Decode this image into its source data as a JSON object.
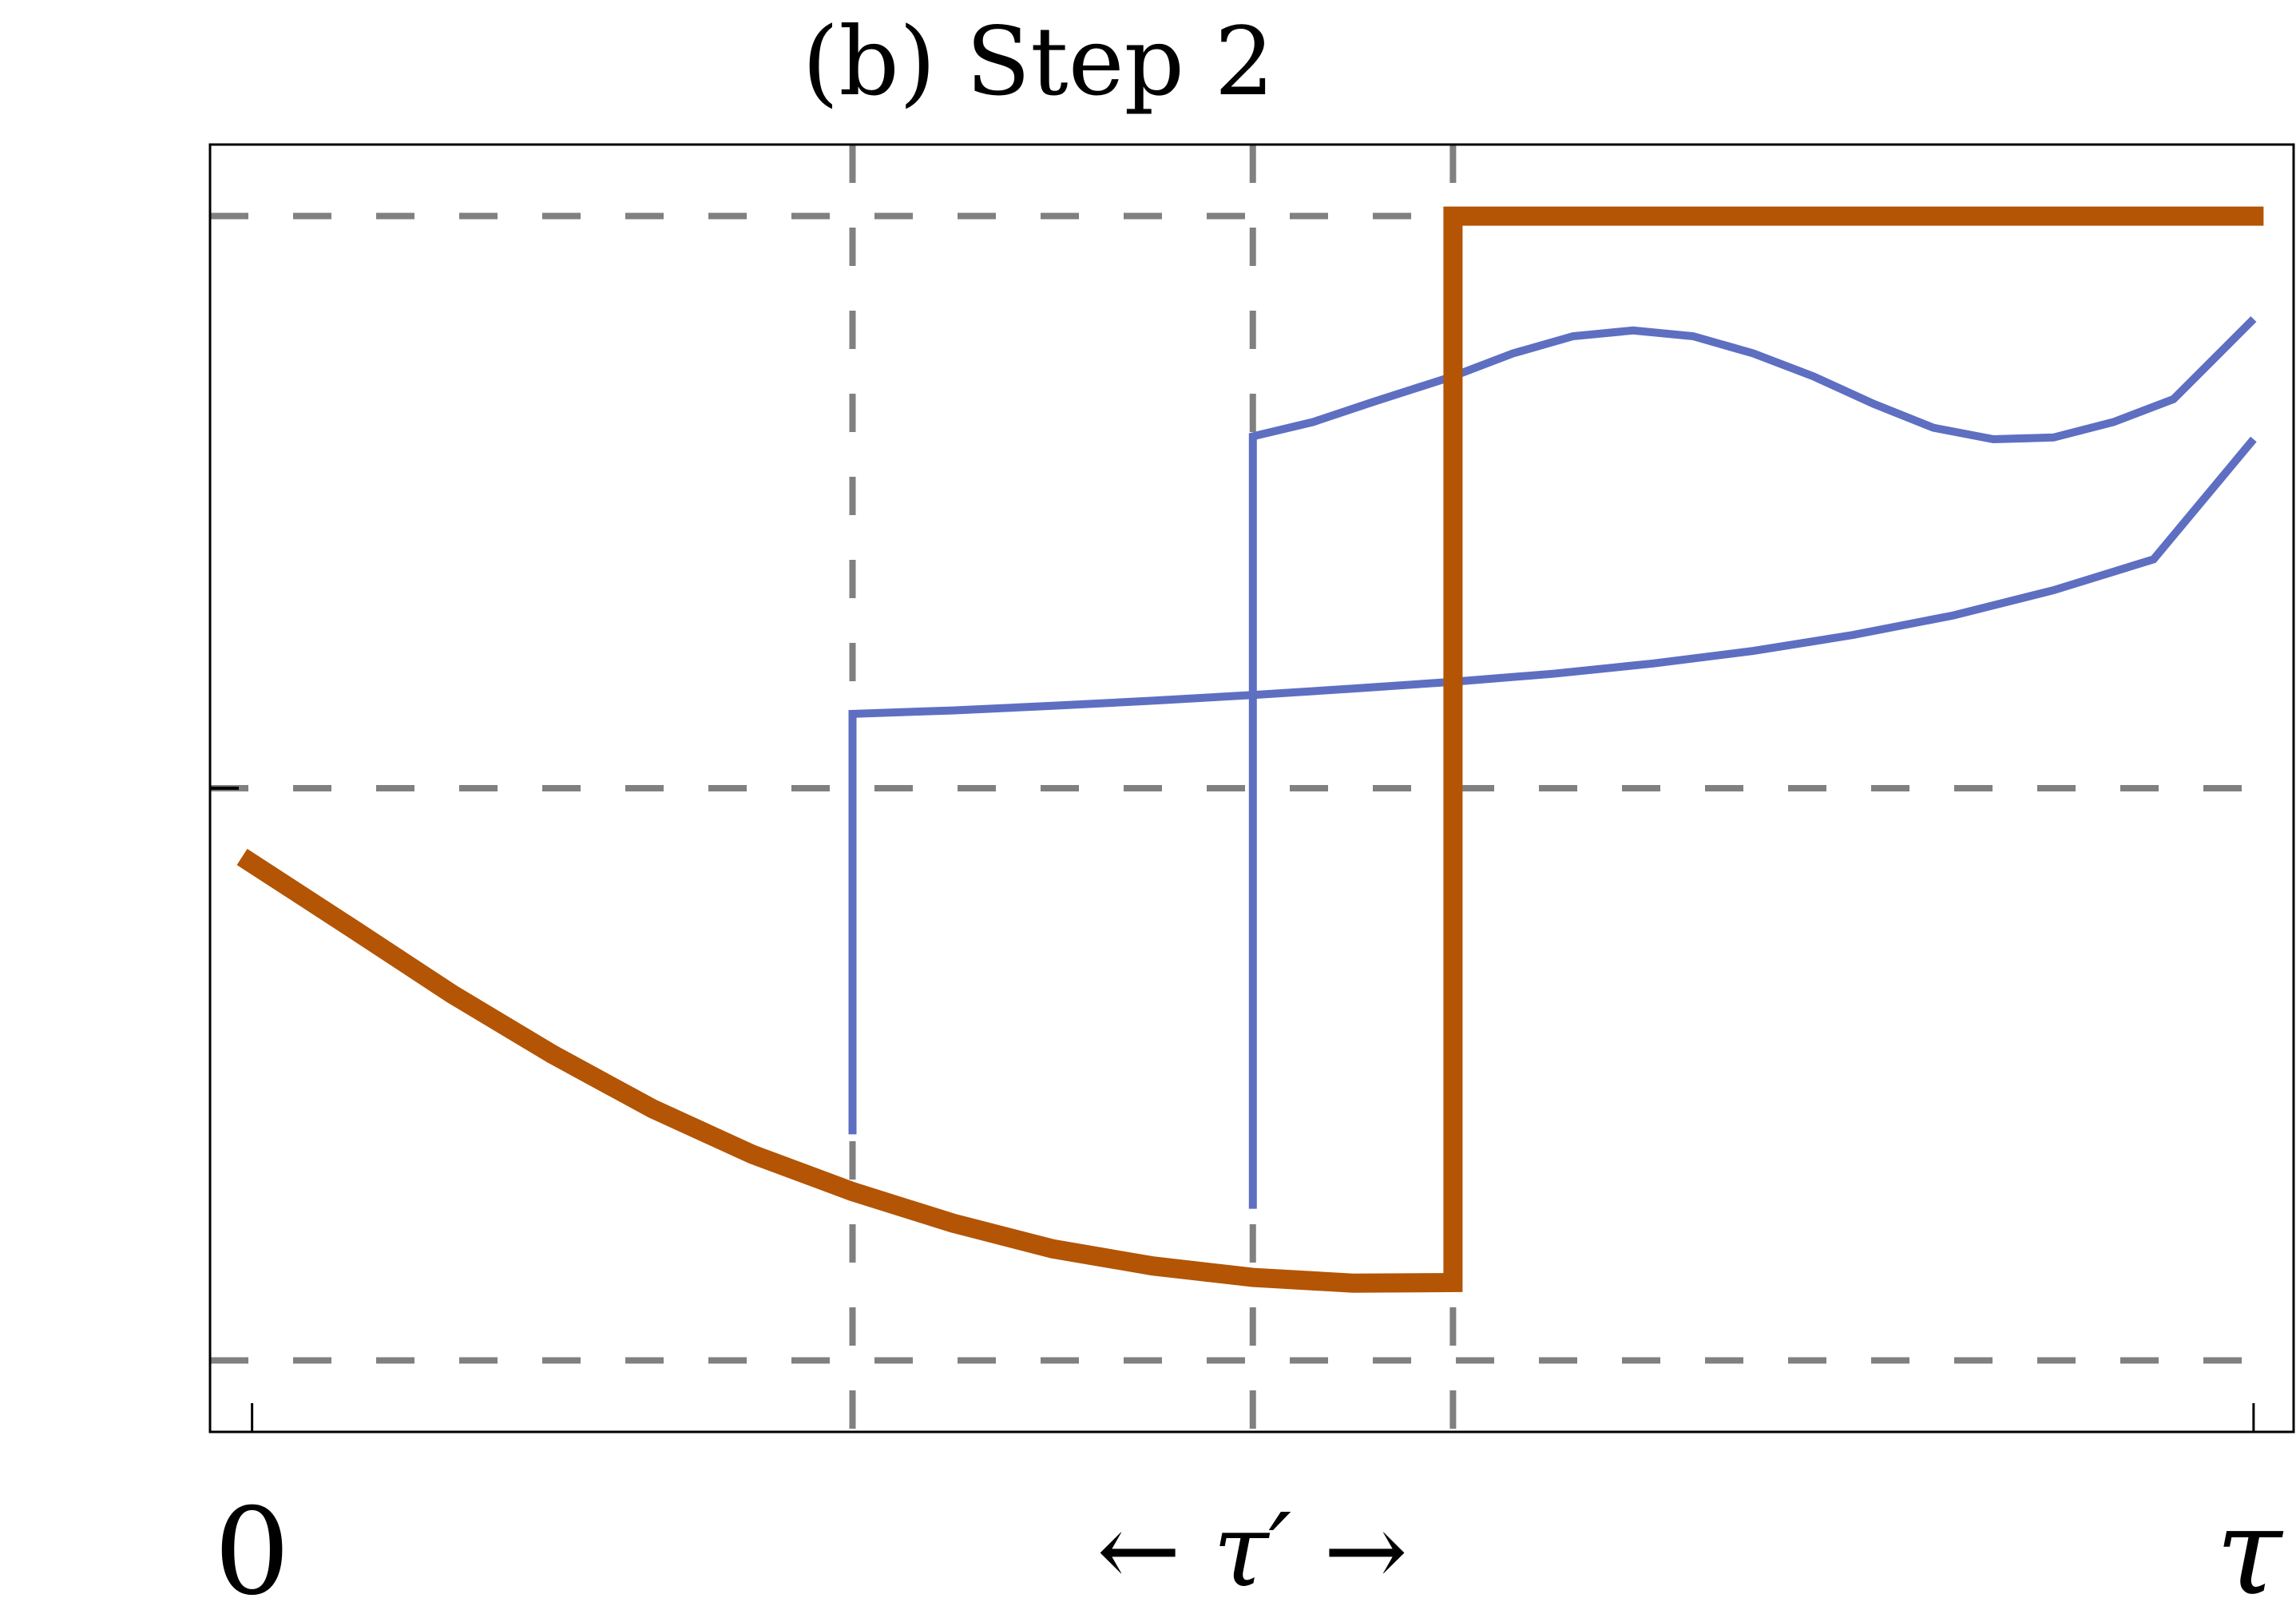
{
  "chart_data": {
    "type": "line",
    "title": "(b)  Step 2",
    "xlabel": "",
    "ylabel": "",
    "x_tick_labels": [
      {
        "x": 0,
        "label": "0"
      },
      {
        "x": 1,
        "label": "τ"
      }
    ],
    "tau_prime_label": "← τ′ →",
    "xlim": [
      -0.021,
      1.02
    ],
    "ylim": [
      -1.125,
      1.125
    ],
    "grid": {
      "vertical_dashed": [
        0.3,
        0.5,
        0.6
      ],
      "horizontal_dashed": [
        -1,
        0,
        1
      ]
    },
    "series": [
      {
        "color": "#b35505",
        "width": "thick",
        "points": [
          [
            -0.005,
            -0.12
          ],
          [
            0.05,
            -0.245
          ],
          [
            0.1,
            -0.36
          ],
          [
            0.15,
            -0.465
          ],
          [
            0.2,
            -0.56
          ],
          [
            0.25,
            -0.64
          ],
          [
            0.3,
            -0.705
          ],
          [
            0.35,
            -0.76
          ],
          [
            0.4,
            -0.805
          ],
          [
            0.45,
            -0.835
          ],
          [
            0.5,
            -0.855
          ],
          [
            0.55,
            -0.865
          ],
          [
            0.6,
            -0.864
          ],
          [
            0.6,
            1.0
          ],
          [
            1.005,
            1.0
          ]
        ]
      },
      {
        "color": "#5e6fc2",
        "width": "thin",
        "points": [
          [
            0.3,
            -0.605
          ],
          [
            0.3,
            0.13
          ],
          [
            0.35,
            0.136
          ],
          [
            0.4,
            0.144
          ],
          [
            0.45,
            0.153
          ],
          [
            0.5,
            0.163
          ],
          [
            0.55,
            0.174
          ],
          [
            0.6,
            0.186
          ],
          [
            0.65,
            0.2
          ],
          [
            0.7,
            0.218
          ],
          [
            0.75,
            0.24
          ],
          [
            0.8,
            0.268
          ],
          [
            0.85,
            0.302
          ],
          [
            0.9,
            0.346
          ],
          [
            0.95,
            0.4
          ],
          [
            1.0,
            0.61
          ]
        ]
      },
      {
        "color": "#5e6fc2",
        "width": "thin",
        "points": [
          [
            0.5,
            -0.735
          ],
          [
            0.5,
            0.615
          ],
          [
            0.53,
            0.64
          ],
          [
            0.56,
            0.675
          ],
          [
            0.6,
            0.72
          ],
          [
            0.63,
            0.76
          ],
          [
            0.66,
            0.79
          ],
          [
            0.69,
            0.8
          ],
          [
            0.72,
            0.79
          ],
          [
            0.75,
            0.76
          ],
          [
            0.78,
            0.72
          ],
          [
            0.81,
            0.672
          ],
          [
            0.84,
            0.63
          ],
          [
            0.87,
            0.61
          ],
          [
            0.9,
            0.613
          ],
          [
            0.93,
            0.64
          ],
          [
            0.96,
            0.68
          ],
          [
            1.0,
            0.82
          ]
        ]
      }
    ]
  }
}
